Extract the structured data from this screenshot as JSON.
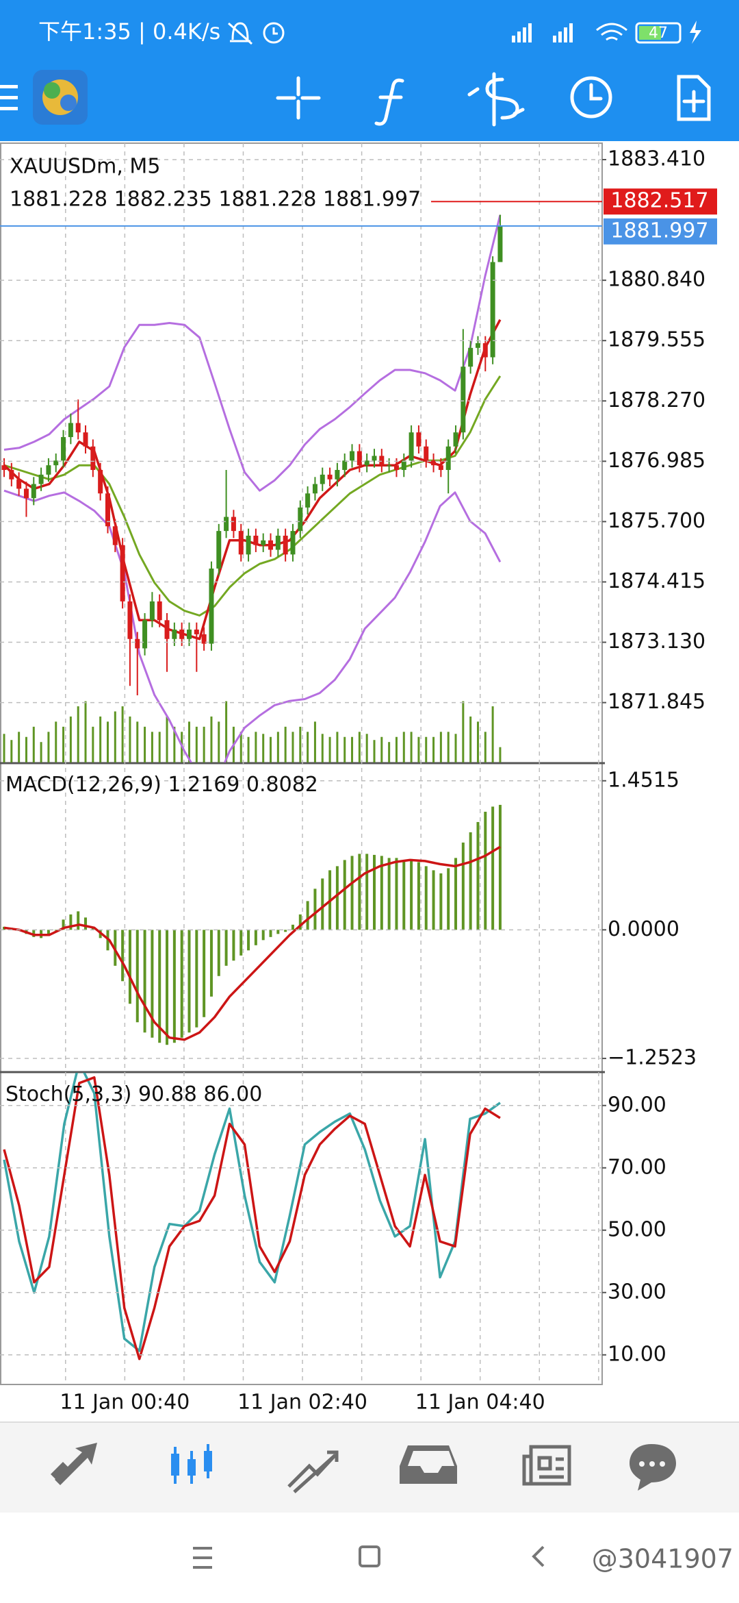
{
  "status_bar": {
    "left": "下午1:35 | 0.4K/s",
    "battery": "47"
  },
  "chart": {
    "symbol": "XAUUSDm, M5",
    "ohlc": "1881.228 1882.235 1881.228 1881.997",
    "colors": {
      "bull": "#3f8f22",
      "bear": "#d91c1c",
      "bands": "#b56ee0",
      "ma_fast": "#d01818",
      "ma_slow": "#74a822",
      "volume": "#5f9524",
      "ask": "#e01b1b",
      "bid": "#4a93e6",
      "histogram": "#5f9524",
      "signal": "#cc1515",
      "stoch_main": "#3aa6a8"
    },
    "price": {
      "ylim": [
        1870.57,
        1883.76
      ],
      "yticks": [
        {
          "value": 1883.41,
          "label": "1883.410"
        },
        {
          "value": 1880.84,
          "label": "1880.840"
        },
        {
          "value": 1879.555,
          "label": "1879.555"
        },
        {
          "value": 1878.27,
          "label": "1878.270"
        },
        {
          "value": 1876.985,
          "label": "1876.985"
        },
        {
          "value": 1875.7,
          "label": "1875.700"
        },
        {
          "value": 1874.415,
          "label": "1874.415"
        },
        {
          "value": 1873.13,
          "label": "1873.130"
        },
        {
          "value": 1871.845,
          "label": "1871.845"
        }
      ],
      "ask": 1882.517,
      "bid": 1881.997,
      "candles": [
        [
          1876.9,
          1877.05,
          1876.65,
          1876.8
        ],
        [
          1876.8,
          1876.95,
          1876.45,
          1876.6
        ],
        [
          1876.6,
          1876.75,
          1876.25,
          1876.4
        ],
        [
          1876.4,
          1876.55,
          1875.8,
          1876.2
        ],
        [
          1876.2,
          1876.65,
          1876.05,
          1876.5
        ],
        [
          1876.5,
          1876.85,
          1876.35,
          1876.7
        ],
        [
          1876.7,
          1877.05,
          1876.55,
          1876.9
        ],
        [
          1876.9,
          1877.15,
          1876.75,
          1877.0
        ],
        [
          1877.0,
          1877.65,
          1876.85,
          1877.5
        ],
        [
          1877.5,
          1878.0,
          1877.35,
          1877.8
        ],
        [
          1877.8,
          1878.3,
          1877.45,
          1877.6
        ],
        [
          1877.6,
          1877.75,
          1877.15,
          1877.3
        ],
        [
          1877.3,
          1877.45,
          1876.65,
          1876.8
        ],
        [
          1876.8,
          1876.95,
          1876.15,
          1876.3
        ],
        [
          1876.3,
          1876.45,
          1875.45,
          1875.6
        ],
        [
          1875.6,
          1875.75,
          1875.05,
          1875.2
        ],
        [
          1875.2,
          1875.35,
          1873.85,
          1874.0
        ],
        [
          1874.0,
          1874.15,
          1872.2,
          1873.2
        ],
        [
          1873.2,
          1873.35,
          1872.0,
          1873.0
        ],
        [
          1873.0,
          1873.75,
          1872.85,
          1873.6
        ],
        [
          1873.6,
          1874.2,
          1873.45,
          1874.0
        ],
        [
          1874.0,
          1874.15,
          1873.45,
          1873.6
        ],
        [
          1873.6,
          1873.75,
          1872.5,
          1873.2
        ],
        [
          1873.2,
          1873.55,
          1873.05,
          1873.4
        ],
        [
          1873.4,
          1873.55,
          1873.05,
          1873.2
        ],
        [
          1873.2,
          1873.55,
          1873.05,
          1873.4
        ],
        [
          1873.4,
          1873.55,
          1872.5,
          1873.3
        ],
        [
          1873.3,
          1873.45,
          1872.95,
          1873.1
        ],
        [
          1873.1,
          1874.85,
          1872.95,
          1874.7
        ],
        [
          1874.7,
          1875.65,
          1874.55,
          1875.5
        ],
        [
          1875.5,
          1876.8,
          1875.35,
          1875.8
        ],
        [
          1875.8,
          1875.95,
          1875.35,
          1875.5
        ],
        [
          1875.5,
          1875.65,
          1874.85,
          1875.0
        ],
        [
          1875.0,
          1875.55,
          1874.85,
          1875.4
        ],
        [
          1875.4,
          1875.55,
          1875.05,
          1875.2
        ],
        [
          1875.2,
          1875.45,
          1875.05,
          1875.3
        ],
        [
          1875.3,
          1875.45,
          1874.95,
          1875.1
        ],
        [
          1875.1,
          1875.55,
          1874.95,
          1875.4
        ],
        [
          1875.4,
          1875.55,
          1874.85,
          1875.0
        ],
        [
          1875.0,
          1875.65,
          1874.85,
          1875.5
        ],
        [
          1875.5,
          1876.15,
          1875.35,
          1876.0
        ],
        [
          1876.0,
          1876.45,
          1875.85,
          1876.3
        ],
        [
          1876.3,
          1876.65,
          1876.15,
          1876.5
        ],
        [
          1876.5,
          1876.85,
          1876.35,
          1876.7
        ],
        [
          1876.7,
          1876.85,
          1876.45,
          1876.6
        ],
        [
          1876.6,
          1876.95,
          1876.45,
          1876.8
        ],
        [
          1876.8,
          1877.15,
          1876.65,
          1877.0
        ],
        [
          1877.0,
          1877.35,
          1876.85,
          1877.2
        ],
        [
          1877.2,
          1877.35,
          1876.75,
          1876.9
        ],
        [
          1876.9,
          1877.15,
          1876.75,
          1877.0
        ],
        [
          1877.0,
          1877.25,
          1876.85,
          1877.1
        ],
        [
          1877.1,
          1877.25,
          1876.75,
          1876.9
        ],
        [
          1876.9,
          1877.05,
          1876.75,
          1876.9
        ],
        [
          1876.9,
          1877.05,
          1876.65,
          1876.8
        ],
        [
          1876.8,
          1877.15,
          1876.65,
          1877.0
        ],
        [
          1877.0,
          1877.75,
          1876.85,
          1877.6
        ],
        [
          1877.6,
          1877.75,
          1877.15,
          1877.3
        ],
        [
          1877.3,
          1877.45,
          1876.85,
          1877.0
        ],
        [
          1877.0,
          1877.15,
          1876.75,
          1876.9
        ],
        [
          1876.9,
          1877.05,
          1876.65,
          1876.8
        ],
        [
          1876.8,
          1877.45,
          1876.3,
          1877.3
        ],
        [
          1877.3,
          1877.75,
          1877.15,
          1877.6
        ],
        [
          1877.6,
          1879.8,
          1877.45,
          1879.0
        ],
        [
          1879.0,
          1879.55,
          1878.85,
          1879.4
        ],
        [
          1879.4,
          1879.65,
          1879.25,
          1879.5
        ],
        [
          1879.5,
          1879.65,
          1878.9,
          1879.2
        ],
        [
          1879.2,
          1881.35,
          1879.05,
          1881.228
        ],
        [
          1881.228,
          1882.235,
          1881.228,
          1881.997
        ]
      ],
      "volumes": [
        28,
        22,
        30,
        25,
        35,
        20,
        30,
        40,
        35,
        45,
        55,
        60,
        35,
        45,
        40,
        50,
        55,
        45,
        40,
        35,
        30,
        30,
        45,
        35,
        30,
        40,
        35,
        35,
        45,
        40,
        60,
        35,
        30,
        25,
        30,
        28,
        25,
        30,
        35,
        30,
        35,
        30,
        40,
        28,
        25,
        30,
        25,
        25,
        30,
        28,
        22,
        25,
        20,
        25,
        30,
        30,
        25,
        25,
        25,
        30,
        30,
        28,
        60,
        45,
        40,
        30,
        55,
        15
      ],
      "bands_upper": [
        1877.23,
        1877.27,
        1877.4,
        1877.56,
        1877.88,
        1878.1,
        1878.32,
        1878.58,
        1879.41,
        1879.89,
        1879.89,
        1879.93,
        1879.89,
        1879.62,
        1878.65,
        1877.67,
        1876.75,
        1876.36,
        1876.58,
        1876.9,
        1877.34,
        1877.67,
        1877.88,
        1878.14,
        1878.43,
        1878.71,
        1878.93,
        1878.93,
        1878.86,
        1878.71,
        1878.49,
        1879.41,
        1880.93,
        1882.23
      ],
      "bands_lower": [
        1876.36,
        1876.25,
        1876.14,
        1876.25,
        1876.32,
        1876.14,
        1875.93,
        1875.6,
        1874.62,
        1872.88,
        1872.01,
        1871.47,
        1870.81,
        1870.27,
        1870.05,
        1870.81,
        1871.31,
        1871.57,
        1871.79,
        1871.88,
        1871.92,
        1872.05,
        1872.33,
        1872.77,
        1873.42,
        1873.75,
        1874.08,
        1874.62,
        1875.27,
        1876.03,
        1876.32,
        1875.71,
        1875.45,
        1874.84
      ],
      "ma_fast": [
        1876.9,
        1876.6,
        1876.4,
        1876.5,
        1876.9,
        1877.4,
        1877.2,
        1876.2,
        1874.8,
        1873.6,
        1873.6,
        1873.4,
        1873.3,
        1873.2,
        1874.3,
        1875.3,
        1875.3,
        1875.2,
        1875.2,
        1875.3,
        1875.7,
        1876.2,
        1876.5,
        1876.8,
        1876.9,
        1876.9,
        1876.9,
        1877.1,
        1877.0,
        1876.9,
        1877.2,
        1878.4,
        1879.4,
        1880.0
      ],
      "ma_slow": [
        1876.9,
        1876.8,
        1876.7,
        1876.6,
        1876.7,
        1876.9,
        1876.9,
        1876.5,
        1875.8,
        1875.0,
        1874.4,
        1874.0,
        1873.8,
        1873.7,
        1873.9,
        1874.3,
        1874.6,
        1874.8,
        1874.9,
        1875.1,
        1875.4,
        1875.7,
        1876.0,
        1876.3,
        1876.5,
        1876.7,
        1876.8,
        1876.9,
        1877.0,
        1877.0,
        1877.1,
        1877.6,
        1878.3,
        1878.8
      ]
    },
    "macd": {
      "label": "MACD(12,26,9)",
      "main_label": "1.2169",
      "signal_label": "0.8082",
      "ylim": [
        -1.372,
        1.61
      ],
      "yticks": [
        1.4515,
        {
          "value": 0,
          "label": "0.0000"
        },
        {
          "value": -1.2523,
          "label": "−1.2523"
        }
      ],
      "histogram": [
        0.03,
        0.02,
        -0.01,
        -0.04,
        -0.07,
        -0.08,
        -0.05,
        0.0,
        0.1,
        0.15,
        0.18,
        0.12,
        0.02,
        -0.08,
        -0.2,
        -0.35,
        -0.5,
        -0.72,
        -0.9,
        -1.0,
        -1.05,
        -1.1,
        -1.12,
        -1.1,
        -1.05,
        -1.0,
        -0.95,
        -0.85,
        -0.65,
        -0.45,
        -0.35,
        -0.3,
        -0.25,
        -0.2,
        -0.15,
        -0.1,
        -0.07,
        -0.04,
        -0.02,
        0.05,
        0.15,
        0.28,
        0.4,
        0.5,
        0.58,
        0.62,
        0.68,
        0.72,
        0.74,
        0.74,
        0.73,
        0.72,
        0.7,
        0.7,
        0.68,
        0.69,
        0.66,
        0.62,
        0.58,
        0.55,
        0.6,
        0.7,
        0.85,
        0.95,
        1.05,
        1.15,
        1.2,
        1.2169
      ],
      "signal": [
        0.02,
        0.0,
        -0.05,
        -0.05,
        0.02,
        0.05,
        0.02,
        -0.1,
        -0.35,
        -0.65,
        -0.9,
        -1.05,
        -1.07,
        -1.0,
        -0.85,
        -0.65,
        -0.5,
        -0.35,
        -0.2,
        -0.05,
        0.08,
        0.2,
        0.32,
        0.44,
        0.55,
        0.62,
        0.66,
        0.68,
        0.67,
        0.64,
        0.62,
        0.66,
        0.72,
        0.8082
      ]
    },
    "stoch": {
      "label": "Stoch(5,3,3)",
      "main_label": "90.88",
      "signal_label": "86.00",
      "ylim": [
        0.5,
        100.5
      ],
      "yticks": [
        {
          "value": 90,
          "label": "90.00"
        },
        {
          "value": 70,
          "label": "70.00"
        },
        {
          "value": 50,
          "label": "50.00"
        },
        {
          "value": 30,
          "label": "30.00"
        },
        {
          "value": 10,
          "label": "10.00"
        }
      ],
      "main": [
        72.6,
        46.4,
        30,
        48.0,
        84.1,
        103.8,
        93.9,
        48.0,
        15.2,
        11.3,
        38.2,
        52,
        51.3,
        56.2,
        74.3,
        89,
        61.1,
        39.8,
        33.3,
        54.6,
        77.5,
        81.5,
        84.8,
        87.4,
        75.9,
        59.5,
        48.0,
        51.3,
        79.2,
        34.9,
        46.4,
        85.7,
        87.4,
        90.88
      ],
      "signal": [
        75.9,
        57.9,
        33.3,
        38.2,
        67.7,
        97.2,
        99,
        67.7,
        25.1,
        8.7,
        25.1,
        44.8,
        51.3,
        53,
        61.1,
        84.1,
        77.5,
        44.8,
        36.6,
        46.4,
        67.7,
        77.5,
        82.5,
        86.7,
        84.1,
        67.7,
        51.3,
        44.8,
        67.7,
        46.4,
        44.8,
        80.8,
        89,
        86
      ]
    },
    "time_labels": [
      "11 Jan 00:40",
      "11 Jan 02:40",
      "11 Jan 04:40"
    ]
  },
  "watermark": "@3041907"
}
